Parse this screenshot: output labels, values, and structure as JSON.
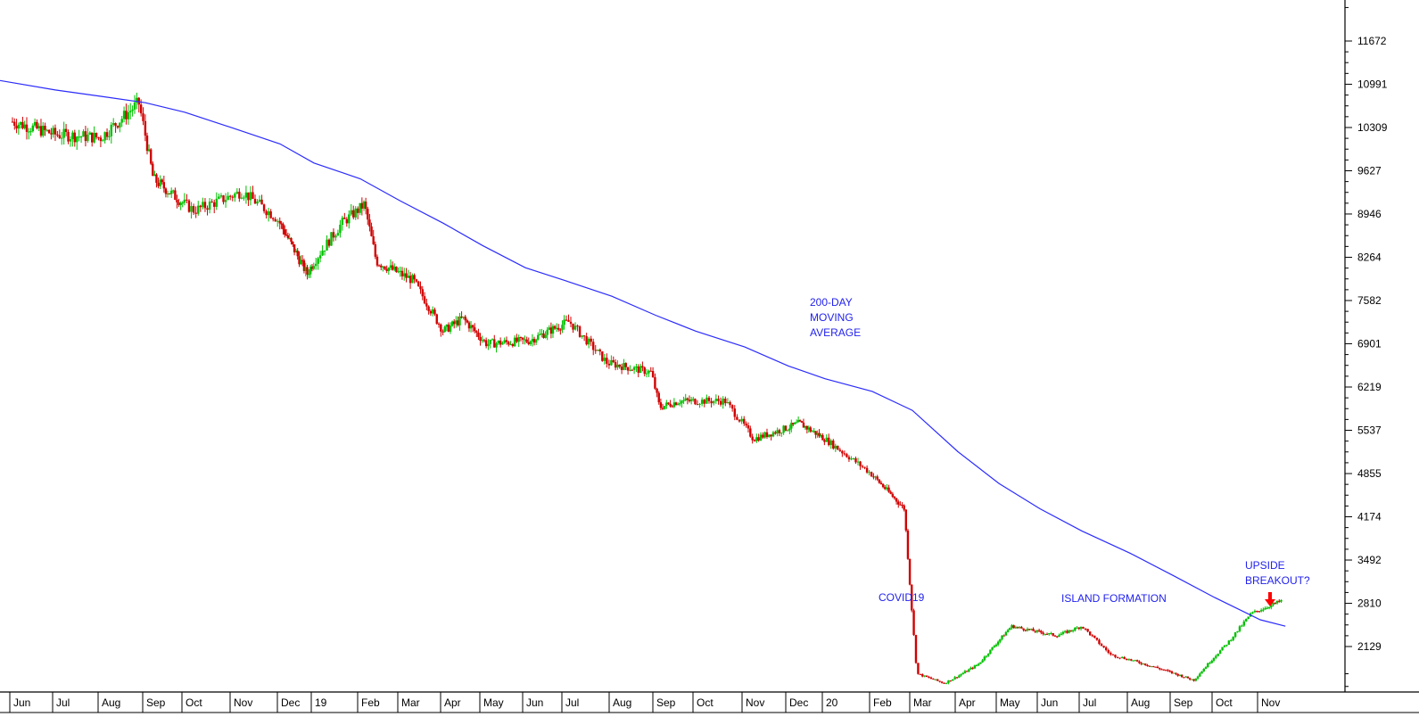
{
  "chart_data": {
    "type": "candlestick",
    "title": "",
    "xlabel": "",
    "ylabel": "",
    "x_tick_labels": [
      "Jun",
      "Jul",
      "Aug",
      "Sep",
      "Oct",
      "Nov",
      "Dec",
      "19",
      "Feb",
      "Mar",
      "Apr",
      "May",
      "Jun",
      "Jul",
      "Aug",
      "Sep",
      "Oct",
      "Nov",
      "Dec",
      "20",
      "Feb",
      "Mar",
      "Apr",
      "May",
      "Jun",
      "Jul",
      "Aug",
      "Sep",
      "Oct",
      "Nov"
    ],
    "y_tick_labels": [
      "11672",
      "10991",
      "10309",
      "9627",
      "8946",
      "8264",
      "7582",
      "6901",
      "6219",
      "5537",
      "4855",
      "4174",
      "3492",
      "2810",
      "2129"
    ],
    "ylim": [
      1450,
      12200
    ],
    "grid": false,
    "colors": {
      "up": "#00c000",
      "down": "#d00000",
      "moving_average": "#2b2bff",
      "annotation": "#2222ee",
      "arrow": "#ff0000"
    },
    "price_path": [
      {
        "month": "Jun 2018",
        "close": 10400
      },
      {
        "month": "Jul 2018",
        "close": 10200
      },
      {
        "month": "Aug 2018",
        "close": 10150
      },
      {
        "month": "Aug 2018 end",
        "close": 10700
      },
      {
        "month": "Sep 2018",
        "close": 9500
      },
      {
        "month": "Oct 2018",
        "close": 9000
      },
      {
        "month": "Nov 2018",
        "close": 9300
      },
      {
        "month": "Nov 2018 end",
        "close": 8900
      },
      {
        "month": "Dec 2018",
        "close": 8000
      },
      {
        "month": "Jan 2019",
        "close": 8800
      },
      {
        "month": "Jan 2019 end",
        "close": 9100
      },
      {
        "month": "Feb 2019",
        "close": 8200
      },
      {
        "month": "Mar 2019",
        "close": 7900
      },
      {
        "month": "Apr 2019",
        "close": 7100
      },
      {
        "month": "Apr 2019 mid",
        "close": 7300
      },
      {
        "month": "May 2019",
        "close": 6900
      },
      {
        "month": "Jun 2019",
        "close": 6950
      },
      {
        "month": "Jul 2019",
        "close": 7250
      },
      {
        "month": "Aug 2019",
        "close": 6600
      },
      {
        "month": "Sep 2019",
        "close": 6450
      },
      {
        "month": "Sep 2019 low",
        "close": 5900
      },
      {
        "month": "Oct 2019",
        "close": 6000
      },
      {
        "month": "Nov 2019",
        "close": 6000
      },
      {
        "month": "Dec 2019",
        "close": 5400
      },
      {
        "month": "Jan 2020",
        "close": 5650
      },
      {
        "month": "Feb 2020",
        "close": 5400
      },
      {
        "month": "Feb 2020 end",
        "close": 4900
      },
      {
        "month": "Mar 2020",
        "close": 4300
      },
      {
        "month": "Mar 2020 low",
        "close": 1700
      },
      {
        "month": "Apr 2020",
        "close": 1550
      },
      {
        "month": "May 2020",
        "close": 1850
      },
      {
        "month": "Jun 2020",
        "close": 2450
      },
      {
        "month": "Jul 2020",
        "close": 2300
      },
      {
        "month": "Jul 2020 end",
        "close": 2450
      },
      {
        "month": "Aug 2020",
        "close": 2000
      },
      {
        "month": "Sep 2020",
        "close": 1800
      },
      {
        "month": "Oct 2020",
        "close": 1600
      },
      {
        "month": "Oct 2020 end",
        "close": 2200
      },
      {
        "month": "Nov 2020",
        "close": 2650
      },
      {
        "month": "Nov 2020 end",
        "close": 2850
      }
    ],
    "moving_average": [
      {
        "month": "Jun 2018",
        "value": 11050
      },
      {
        "month": "Jul 2018",
        "value": 10900
      },
      {
        "month": "Aug 2018",
        "value": 10800
      },
      {
        "month": "Sep 2018",
        "value": 10700
      },
      {
        "month": "Oct 2018",
        "value": 10550
      },
      {
        "month": "Nov 2018",
        "value": 10300
      },
      {
        "month": "Dec 2018",
        "value": 10050
      },
      {
        "month": "Jan 2019",
        "value": 9750
      },
      {
        "month": "Feb 2019",
        "value": 9500
      },
      {
        "month": "Mar 2019",
        "value": 9150
      },
      {
        "month": "Apr 2019",
        "value": 8800
      },
      {
        "month": "May 2019",
        "value": 8450
      },
      {
        "month": "Jun 2019",
        "value": 8100
      },
      {
        "month": "Jul 2019",
        "value": 7900
      },
      {
        "month": "Aug 2019",
        "value": 7650
      },
      {
        "month": "Sep 2019",
        "value": 7350
      },
      {
        "month": "Oct 2019",
        "value": 7100
      },
      {
        "month": "Nov 2019",
        "value": 6850
      },
      {
        "month": "Dec 2019",
        "value": 6550
      },
      {
        "month": "Jan 2020",
        "value": 6350
      },
      {
        "month": "Feb 2020",
        "value": 6150
      },
      {
        "month": "Mar 2020",
        "value": 5850
      },
      {
        "month": "Apr 2020",
        "value": 5200
      },
      {
        "month": "May 2020",
        "value": 4700
      },
      {
        "month": "Jun 2020",
        "value": 4300
      },
      {
        "month": "Jul 2020",
        "value": 3950
      },
      {
        "month": "Aug 2020",
        "value": 3600
      },
      {
        "month": "Sep 2020",
        "value": 3250
      },
      {
        "month": "Oct 2020",
        "value": 2900
      },
      {
        "month": "Nov 2020",
        "value": 2550
      },
      {
        "month": "Nov 2020 end",
        "value": 2450
      }
    ],
    "annotations": [
      {
        "id": "ma",
        "lines": [
          "200-DAY",
          "MOVING",
          "AVERAGE"
        ]
      },
      {
        "id": "covid",
        "lines": [
          "COVID19"
        ]
      },
      {
        "id": "island",
        "lines": [
          "ISLAND FORMATION"
        ]
      },
      {
        "id": "breakout",
        "lines": [
          "UPSIDE",
          "BREAKOUT?"
        ]
      }
    ]
  }
}
